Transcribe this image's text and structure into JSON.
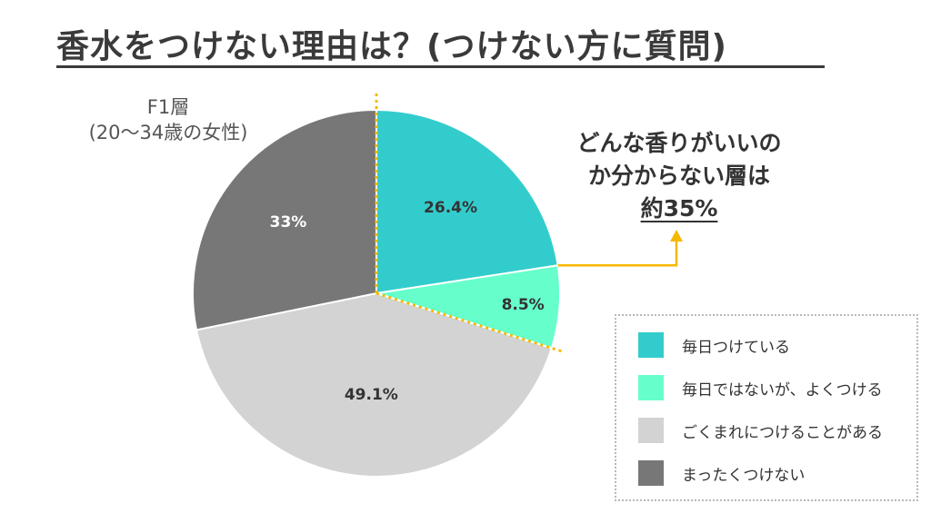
{
  "title": "香水をつけない理由は？(つけない方に質問)",
  "group_label": {
    "line1": "F1層",
    "line2": "(20～34歳の女性)"
  },
  "callout": {
    "line1": "どんな香りがいいの",
    "line2": "か分からない層は",
    "line3": "約35%"
  },
  "colors": {
    "accent": "#f5b800"
  },
  "chart_data": {
    "type": "pie",
    "title": "香水をつけない理由は？(つけない方に質問)",
    "slices": [
      {
        "label": "毎日つけている",
        "value": 26.4,
        "display": "26.4%",
        "color": "#33cccc"
      },
      {
        "label": "毎日ではないが、よくつける",
        "value": 8.5,
        "display": "8.5%",
        "color": "#66ffcc"
      },
      {
        "label": "ごくまれにつけることがある",
        "value": 49.1,
        "display": "49.1%",
        "color": "#d3d3d3"
      },
      {
        "label": "まったくつけない",
        "value": 33,
        "display": "33%",
        "color": "#777777"
      }
    ],
    "start_angle": "12 o'clock",
    "direction": "clockwise",
    "legend_position": "bottom-right",
    "highlighted_slices": [
      0,
      1
    ]
  }
}
